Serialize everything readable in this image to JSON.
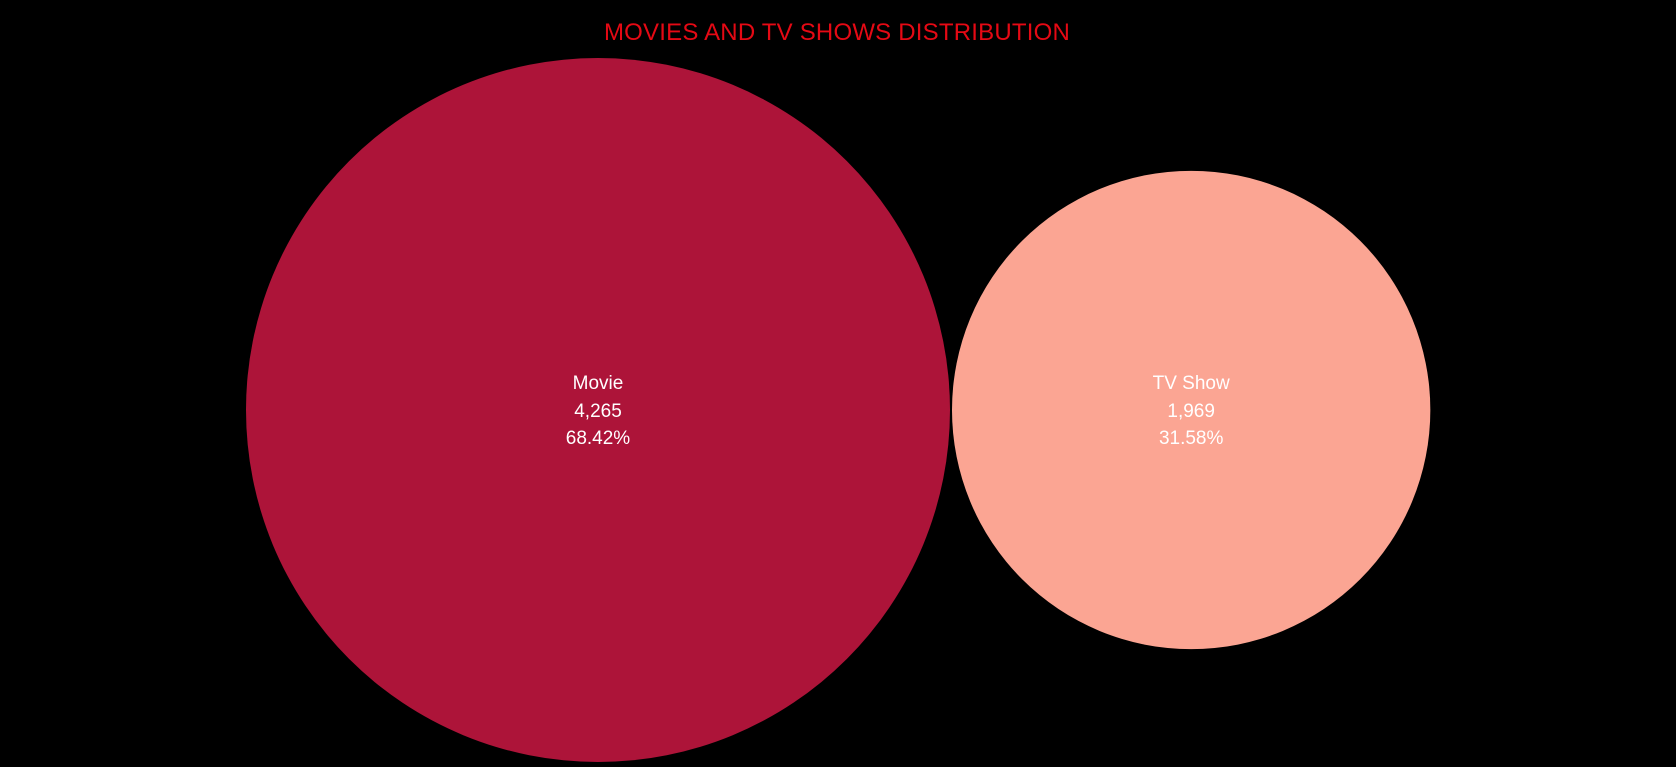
{
  "colors": {
    "background": "#000000",
    "title": "#e50914",
    "label": "#ffffff"
  },
  "chart_data": {
    "type": "bubble",
    "title": "MOVIES AND TV SHOWS DISTRIBUTION",
    "categories": [
      "Movie",
      "TV Show"
    ],
    "values": [
      4265,
      1969
    ],
    "value_labels": [
      "4,265",
      "1,969"
    ],
    "percent_labels": [
      "68.42%",
      "31.58%"
    ],
    "percents": [
      68.42,
      31.58
    ],
    "colors": [
      "#ad1439",
      "#fba593"
    ],
    "legend": "none",
    "grid": false
  }
}
